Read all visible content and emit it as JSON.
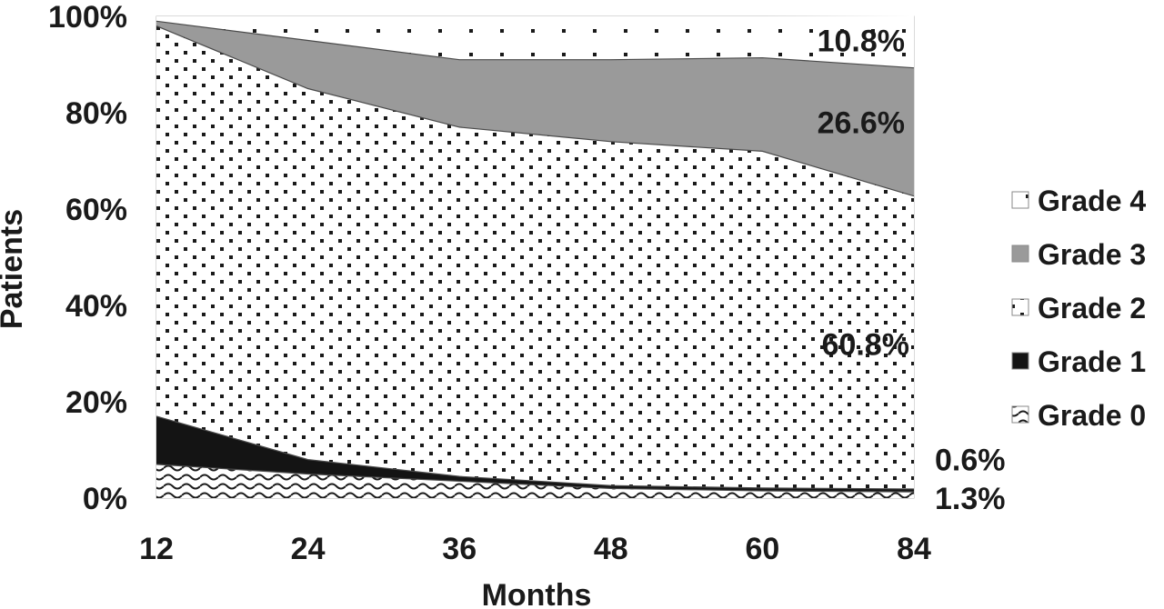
{
  "chart_data": {
    "type": "area",
    "stacked": true,
    "normalized": true,
    "xlabel": "Months",
    "ylabel": "Patients",
    "x": [
      12,
      24,
      36,
      48,
      60,
      84
    ],
    "xticks": [
      "12",
      "24",
      "36",
      "48",
      "60",
      "84"
    ],
    "yticks": [
      "0%",
      "20%",
      "40%",
      "60%",
      "80%",
      "100%"
    ],
    "ylim": [
      0,
      100
    ],
    "legend_position": "right",
    "series": [
      {
        "name": "Grade 0",
        "values": [
          7,
          5,
          3.5,
          2,
          1.5,
          1.3
        ],
        "pattern": "wave",
        "color": "#ffffff"
      },
      {
        "name": "Grade 1",
        "values": [
          10,
          3,
          1,
          0.6,
          0.6,
          0.6
        ],
        "pattern": "solid",
        "color": "#141414"
      },
      {
        "name": "Grade 2",
        "values": [
          81,
          77,
          72.5,
          71.4,
          69.9,
          60.8
        ],
        "pattern": "dots",
        "color": "#ffffff"
      },
      {
        "name": "Grade 3",
        "values": [
          1,
          10,
          14,
          17,
          19.4,
          26.6
        ],
        "pattern": "solid",
        "color": "#9a9a9a"
      },
      {
        "name": "Grade 4",
        "values": [
          1,
          5,
          9,
          9,
          8.6,
          10.8
        ],
        "pattern": "sparse-dots",
        "color": "#ffffff"
      }
    ],
    "annotations": [
      {
        "text": "10.8%",
        "series": "Grade 4"
      },
      {
        "text": "26.6%",
        "series": "Grade 3"
      },
      {
        "text": "60.8%",
        "series": "Grade 2"
      },
      {
        "text": "0.6%",
        "series": "Grade 1"
      },
      {
        "text": "1.3%",
        "series": "Grade 0"
      }
    ]
  }
}
